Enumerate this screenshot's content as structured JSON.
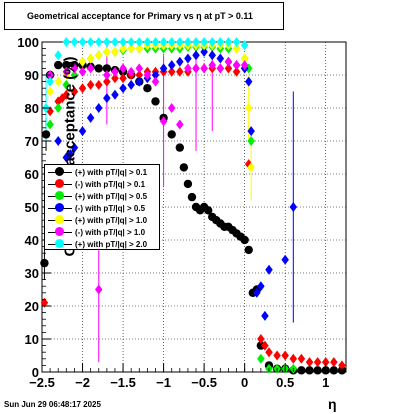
{
  "header": {
    "title": "Geometrical acceptance for Primary vs    η  at pT > 0.11"
  },
  "footer": {
    "datestamp": "Sun Jun 29 06:48:17 2025"
  },
  "chart_data": {
    "type": "scatter",
    "title": "Geometrical acceptance for Primary vs    η  at pT > 0.11",
    "xlabel": "η",
    "ylabel": "Geometrical acceptance (%)",
    "xlim": [
      -2.5,
      1.25
    ],
    "ylim": [
      0,
      100
    ],
    "grid": true,
    "legend_position": "middle-left",
    "x_ticks": [
      "−2.5",
      "−2",
      "−1.5",
      "−1",
      "−0.5",
      "0",
      "0.5",
      "1"
    ],
    "x_tick_values": [
      -2.5,
      -2,
      -1.5,
      -1,
      -0.5,
      0,
      0.5,
      1
    ],
    "y_ticks": [
      "0",
      "10",
      "20",
      "30",
      "40",
      "50",
      "60",
      "70",
      "80",
      "90",
      "100"
    ],
    "y_tick_values": [
      0,
      10,
      20,
      30,
      40,
      50,
      60,
      70,
      80,
      90,
      100
    ],
    "series": [
      {
        "name": "(+) with pT/|q| > 0.1",
        "color": "#000000",
        "points": [
          [
            -2.47,
            33
          ],
          [
            -2.45,
            72
          ],
          [
            -2.4,
            90
          ],
          [
            -2.3,
            93
          ],
          [
            -2.2,
            93
          ],
          [
            -2.1,
            93
          ],
          [
            -2.0,
            93
          ],
          [
            -1.9,
            92.5
          ],
          [
            -1.8,
            92
          ],
          [
            -1.7,
            92
          ],
          [
            -1.6,
            91.5
          ],
          [
            -1.5,
            91
          ],
          [
            -1.4,
            90
          ],
          [
            -1.3,
            88
          ],
          [
            -1.2,
            86
          ],
          [
            -1.1,
            82
          ],
          [
            -1.0,
            77
          ],
          [
            -0.9,
            72
          ],
          [
            -0.8,
            68
          ],
          [
            -0.75,
            62
          ],
          [
            -0.7,
            57
          ],
          [
            -0.65,
            53
          ],
          [
            -0.6,
            50
          ],
          [
            -0.55,
            49
          ],
          [
            -0.5,
            50
          ],
          [
            -0.45,
            49
          ],
          [
            -0.4,
            47
          ],
          [
            -0.35,
            46
          ],
          [
            -0.3,
            45
          ],
          [
            -0.25,
            44
          ],
          [
            -0.2,
            44
          ],
          [
            -0.15,
            43
          ],
          [
            -0.1,
            42
          ],
          [
            -0.05,
            41
          ],
          [
            0.0,
            40
          ],
          [
            0.05,
            37
          ],
          [
            0.1,
            24
          ],
          [
            0.15,
            25
          ],
          [
            0.2,
            8
          ],
          [
            0.3,
            2
          ],
          [
            0.4,
            1
          ],
          [
            0.5,
            1
          ],
          [
            0.6,
            0.5
          ],
          [
            0.7,
            0.5
          ],
          [
            0.8,
            0.5
          ],
          [
            0.9,
            0.5
          ],
          [
            1.0,
            0.5
          ],
          [
            1.1,
            0.5
          ],
          [
            1.2,
            0.5
          ]
        ],
        "errors": [
          [
            -2.47,
            5
          ],
          [
            -2.45,
            5
          ]
        ]
      },
      {
        "name": "(-) with pT/|q| > 0.1",
        "color": "#ff0000",
        "points": [
          [
            -2.47,
            21
          ],
          [
            -2.4,
            79
          ],
          [
            -2.3,
            82
          ],
          [
            -2.25,
            83
          ],
          [
            -2.2,
            84
          ],
          [
            -2.1,
            85
          ],
          [
            -2.0,
            86
          ],
          [
            -1.9,
            87
          ],
          [
            -1.8,
            87
          ],
          [
            -1.7,
            88
          ],
          [
            -1.6,
            89
          ],
          [
            -1.5,
            89
          ],
          [
            -1.4,
            90
          ],
          [
            -1.3,
            90
          ],
          [
            -1.2,
            91
          ],
          [
            -1.1,
            91
          ],
          [
            -1.0,
            91
          ],
          [
            -0.9,
            91
          ],
          [
            -0.8,
            91
          ],
          [
            -0.7,
            91
          ],
          [
            -0.6,
            92
          ],
          [
            -0.5,
            92
          ],
          [
            -0.4,
            92
          ],
          [
            -0.3,
            92
          ],
          [
            -0.2,
            92
          ],
          [
            -0.1,
            91
          ],
          [
            0.0,
            92
          ],
          [
            0.05,
            63
          ],
          [
            0.2,
            10
          ],
          [
            0.25,
            8
          ],
          [
            0.3,
            6
          ],
          [
            0.4,
            5
          ],
          [
            0.5,
            5
          ],
          [
            0.6,
            4
          ],
          [
            0.7,
            4
          ],
          [
            0.8,
            3
          ],
          [
            0.9,
            3
          ],
          [
            1.0,
            3
          ],
          [
            1.1,
            3
          ],
          [
            1.2,
            2
          ]
        ],
        "errors": []
      },
      {
        "name": "(+) with pT/|q| > 0.5",
        "color": "#00ee00",
        "points": [
          [
            -2.4,
            75
          ],
          [
            -2.3,
            80
          ],
          [
            -2.2,
            87
          ],
          [
            -2.1,
            90
          ],
          [
            -2.0,
            94
          ],
          [
            -1.9,
            95
          ],
          [
            -1.8,
            96
          ],
          [
            -1.7,
            97
          ],
          [
            -1.6,
            97
          ],
          [
            -1.5,
            97.5
          ],
          [
            -1.4,
            98
          ],
          [
            -1.3,
            98
          ],
          [
            -1.2,
            98
          ],
          [
            -1.1,
            98
          ],
          [
            -1.0,
            98
          ],
          [
            -0.9,
            98
          ],
          [
            -0.8,
            98
          ],
          [
            -0.7,
            98.5
          ],
          [
            -0.6,
            98.5
          ],
          [
            -0.5,
            98.5
          ],
          [
            -0.4,
            98.5
          ],
          [
            -0.3,
            98
          ],
          [
            -0.2,
            98
          ],
          [
            -0.1,
            98
          ],
          [
            0.0,
            95
          ],
          [
            0.05,
            92
          ],
          [
            0.08,
            70
          ],
          [
            0.2,
            4
          ],
          [
            0.3,
            1
          ],
          [
            0.4,
            1
          ],
          [
            0.5,
            1
          ],
          [
            0.6,
            1
          ]
        ],
        "errors": []
      },
      {
        "name": "(-) with pT/|q| > 0.5",
        "color": "#0000ff",
        "points": [
          [
            -2.3,
            70
          ],
          [
            -2.2,
            65
          ],
          [
            -2.15,
            66
          ],
          [
            -2.1,
            68
          ],
          [
            -2.0,
            73
          ],
          [
            -1.9,
            77
          ],
          [
            -1.8,
            80
          ],
          [
            -1.7,
            83
          ],
          [
            -1.6,
            84
          ],
          [
            -1.5,
            86
          ],
          [
            -1.4,
            87
          ],
          [
            -1.3,
            88
          ],
          [
            -1.2,
            89
          ],
          [
            -1.1,
            90
          ],
          [
            -1.0,
            92
          ],
          [
            -0.9,
            93
          ],
          [
            -0.8,
            94
          ],
          [
            -0.7,
            95
          ],
          [
            -0.6,
            96
          ],
          [
            -0.5,
            97
          ],
          [
            -0.4,
            96
          ],
          [
            -0.3,
            95
          ],
          [
            -0.2,
            94
          ],
          [
            -0.1,
            93
          ],
          [
            0.0,
            92
          ],
          [
            0.05,
            88
          ],
          [
            0.08,
            73
          ],
          [
            0.15,
            24
          ],
          [
            0.2,
            26
          ],
          [
            0.25,
            17
          ],
          [
            0.3,
            31
          ],
          [
            0.5,
            34
          ],
          [
            0.6,
            50
          ]
        ],
        "errors": [
          [
            0.6,
            35
          ]
        ]
      },
      {
        "name": "(+) with pT/|q| > 1.0",
        "color": "#ffff00",
        "points": [
          [
            -2.4,
            85
          ],
          [
            -2.3,
            88
          ],
          [
            -2.2,
            90
          ],
          [
            -2.1,
            92
          ],
          [
            -2.0,
            94
          ],
          [
            -1.9,
            95
          ],
          [
            -1.8,
            96
          ],
          [
            -1.7,
            97
          ],
          [
            -1.6,
            97
          ],
          [
            -1.5,
            98
          ],
          [
            -1.4,
            98
          ],
          [
            -1.3,
            98
          ],
          [
            -1.2,
            99
          ],
          [
            -1.1,
            99
          ],
          [
            -1.0,
            99
          ],
          [
            -0.9,
            99
          ],
          [
            -0.8,
            99
          ],
          [
            -0.7,
            99
          ],
          [
            -0.6,
            99
          ],
          [
            -0.5,
            99
          ],
          [
            -0.4,
            99
          ],
          [
            -0.3,
            99
          ],
          [
            -0.2,
            99
          ],
          [
            -0.1,
            98
          ],
          [
            0.0,
            95
          ],
          [
            0.05,
            80
          ],
          [
            0.08,
            62
          ]
        ],
        "errors": [
          [
            0.05,
            10
          ],
          [
            0.08,
            10
          ]
        ]
      },
      {
        "name": "(-) with pT/|q| > 1.0",
        "color": "#ff00ff",
        "points": [
          [
            -2.4,
            90
          ],
          [
            -2.2,
            91
          ],
          [
            -2.1,
            92
          ],
          [
            -2.0,
            91
          ],
          [
            -1.9,
            92
          ],
          [
            -1.8,
            25
          ],
          [
            -1.7,
            90
          ],
          [
            -1.6,
            91
          ],
          [
            -1.5,
            92
          ],
          [
            -1.4,
            91
          ],
          [
            -1.3,
            92
          ],
          [
            -1.2,
            90
          ],
          [
            -1.1,
            88
          ],
          [
            -1.0,
            76
          ],
          [
            -0.9,
            80
          ],
          [
            -0.8,
            75
          ],
          [
            -0.7,
            92
          ],
          [
            -0.6,
            92
          ],
          [
            -0.5,
            92
          ],
          [
            -0.4,
            93
          ],
          [
            -0.3,
            92
          ],
          [
            -0.2,
            94
          ],
          [
            -0.1,
            93
          ],
          [
            0.0,
            93
          ]
        ],
        "errors": [
          [
            -1.8,
            22
          ],
          [
            -1.7,
            15
          ],
          [
            -1.0,
            20
          ],
          [
            -0.6,
            25
          ],
          [
            -0.4,
            20
          ]
        ]
      },
      {
        "name": "(+) with pT/|q| > 2.0",
        "color": "#00ffff",
        "points": [
          [
            -2.45,
            80
          ],
          [
            -2.4,
            88
          ],
          [
            -2.3,
            96
          ],
          [
            -2.2,
            100
          ],
          [
            -2.1,
            100
          ],
          [
            -2.0,
            100
          ],
          [
            -1.9,
            100
          ],
          [
            -1.8,
            100
          ],
          [
            -1.7,
            100
          ],
          [
            -1.6,
            100
          ],
          [
            -1.5,
            100
          ],
          [
            -1.4,
            100
          ],
          [
            -1.3,
            100
          ],
          [
            -1.2,
            100
          ],
          [
            -1.1,
            100
          ],
          [
            -1.0,
            100
          ],
          [
            -0.9,
            100
          ],
          [
            -0.8,
            100
          ],
          [
            -0.7,
            100
          ],
          [
            -0.6,
            100
          ],
          [
            -0.5,
            100
          ],
          [
            -0.4,
            100
          ],
          [
            -0.3,
            100
          ],
          [
            -0.2,
            100
          ],
          [
            -0.1,
            100
          ],
          [
            0.0,
            99
          ]
        ],
        "errors": [
          [
            -2.45,
            10
          ]
        ]
      }
    ]
  }
}
